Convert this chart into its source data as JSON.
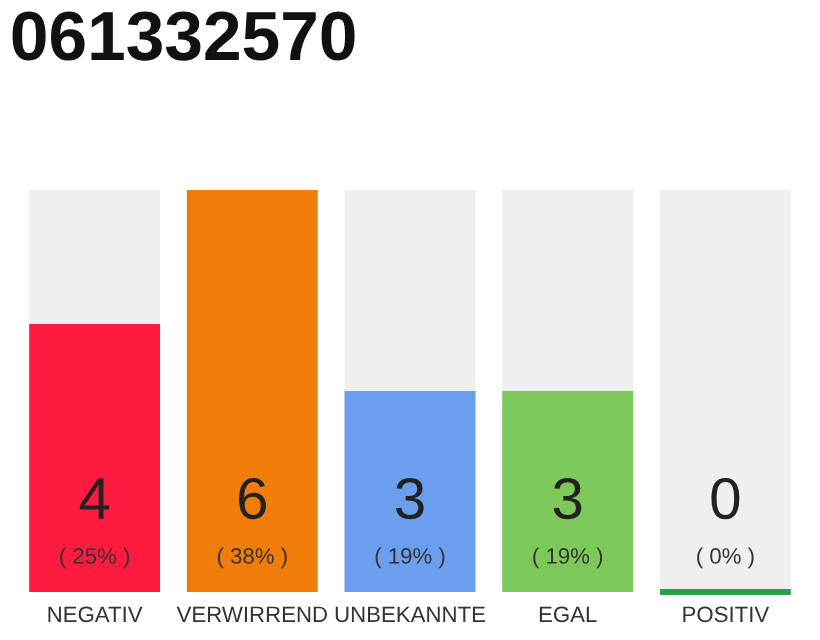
{
  "chart_data": {
    "type": "bar",
    "title": "061332570",
    "categories": [
      "NEGATIV",
      "VERWIRREND",
      "UNBEKANNTE",
      "EGAL",
      "POSITIV"
    ],
    "values": [
      4,
      6,
      3,
      3,
      0
    ],
    "colors": [
      "#ff1a40",
      "#f07d0a",
      "#6a9eee",
      "#7cc95a",
      "#2ca048"
    ],
    "data_labels": true,
    "value_labels": [
      "4",
      "6",
      "3",
      "3",
      "0"
    ],
    "annotations": [
      "( 25% )",
      "( 38% )",
      "( 19% )",
      "( 19% )",
      "( 0% )"
    ],
    "grid": false,
    "legend": false,
    "tick_labels": "x"
  }
}
